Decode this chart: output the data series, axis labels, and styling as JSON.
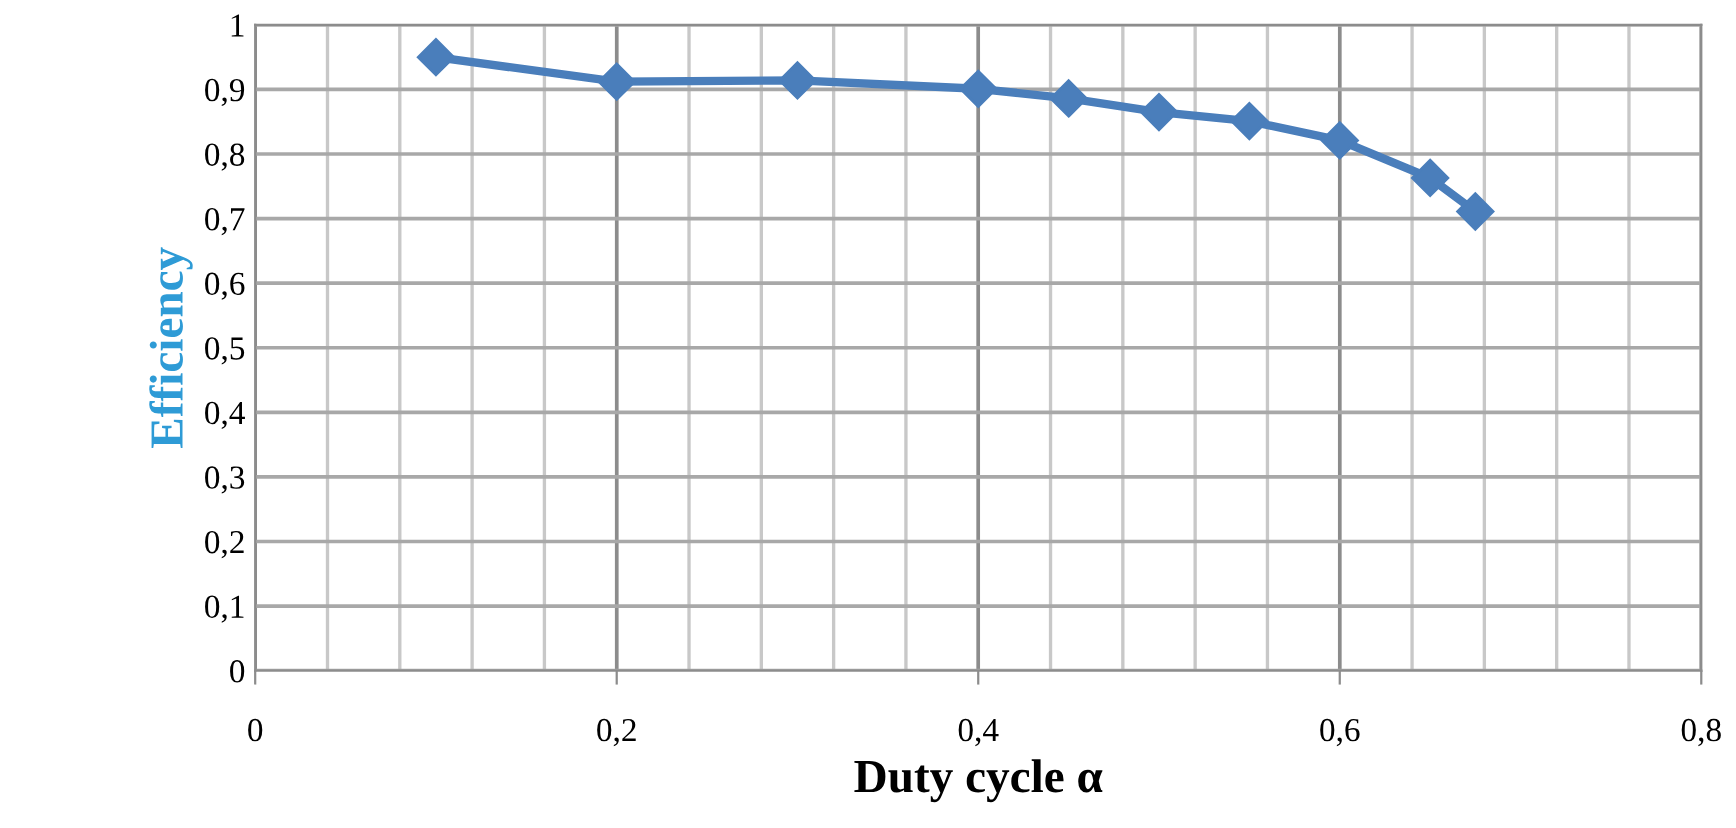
{
  "chart_data": {
    "type": "line",
    "xlabel": "Duty cycle α",
    "ylabel": "Efficiency",
    "x": [
      0.1,
      0.2,
      0.3,
      0.4,
      0.45,
      0.5,
      0.55,
      0.6,
      0.65,
      0.675
    ],
    "series": [
      {
        "color": "#4a7ebb",
        "values": [
          0.95,
          0.912,
          0.914,
          0.901,
          0.886,
          0.865,
          0.851,
          0.821,
          0.763,
          0.711
        ]
      }
    ],
    "xlim": [
      0,
      0.8
    ],
    "ylim": [
      0,
      1
    ],
    "xticks": [
      {
        "value": 0,
        "label": "0"
      },
      {
        "value": 0.2,
        "label": "0,2"
      },
      {
        "value": 0.4,
        "label": "0,4"
      },
      {
        "value": 0.6,
        "label": "0,6"
      },
      {
        "value": 0.8,
        "label": "0,8"
      }
    ],
    "yticks": [
      {
        "value": 0,
        "label": "0"
      },
      {
        "value": 0.1,
        "label": "0,1"
      },
      {
        "value": 0.2,
        "label": "0,2"
      },
      {
        "value": 0.3,
        "label": "0,3"
      },
      {
        "value": 0.4,
        "label": "0,4"
      },
      {
        "value": 0.5,
        "label": "0,5"
      },
      {
        "value": 0.6,
        "label": "0,6"
      },
      {
        "value": 0.7,
        "label": "0,7"
      },
      {
        "value": 0.8,
        "label": "0,8"
      },
      {
        "value": 0.9,
        "label": "0,9"
      },
      {
        "value": 1,
        "label": "1"
      }
    ],
    "grid": true,
    "marker": "diamond",
    "line_style": "solid",
    "legend": false
  }
}
